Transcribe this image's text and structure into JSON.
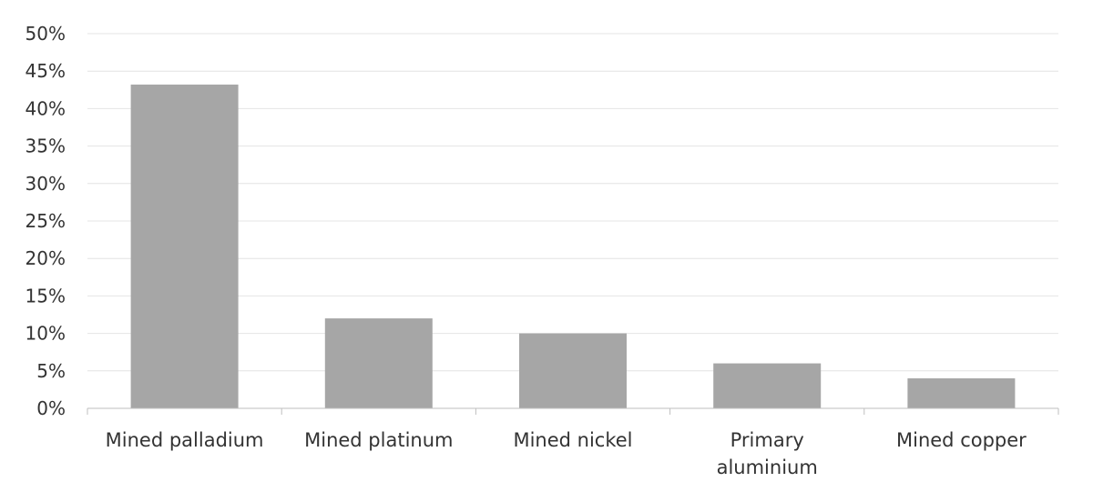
{
  "chart_data": {
    "type": "bar",
    "title": "",
    "xlabel": "",
    "ylabel": "",
    "categories": [
      "Mined palladium",
      "Mined platinum",
      "Mined nickel",
      "Primary aluminium",
      "Mined copper"
    ],
    "category_lines": [
      [
        "Mined palladium"
      ],
      [
        "Mined platinum"
      ],
      [
        "Mined nickel"
      ],
      [
        "Primary",
        "aluminium"
      ],
      [
        "Mined copper"
      ]
    ],
    "values": [
      43.2,
      12.0,
      10.0,
      6.0,
      4.0
    ],
    "unit": "%",
    "ylim": [
      0,
      50
    ],
    "yticks": [
      0,
      5,
      10,
      15,
      20,
      25,
      30,
      35,
      40,
      45,
      50
    ],
    "ytick_labels": [
      "0%",
      "5%",
      "10%",
      "15%",
      "20%",
      "25%",
      "30%",
      "35%",
      "40%",
      "45%",
      "50%"
    ],
    "grid": true,
    "legend": "none",
    "colors": {
      "bar": "#a6a6a6",
      "grid": "#e4e4e4",
      "axis": "#bfbfbf",
      "text": "#333333"
    }
  }
}
